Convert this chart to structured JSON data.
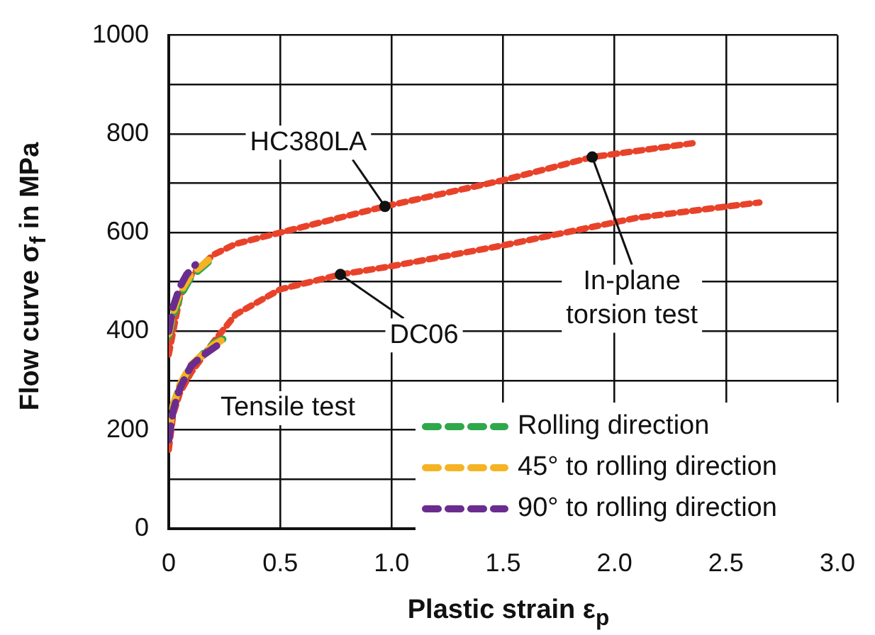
{
  "chart_data": {
    "type": "line",
    "xlabel": "Plastic strain ε$_{p}$",
    "ylabel": "Flow curve σ$_{f}$ in MPa",
    "xlim": [
      0,
      3.0
    ],
    "xticks": [
      0,
      0.5,
      {
        "value": 1,
        "label": "1.0"
      },
      1.5,
      {
        "value": 2,
        "label": "2.0"
      },
      2.5,
      {
        "value": 3,
        "label": "3.0"
      }
    ],
    "ylim": [
      0,
      1000
    ],
    "yticks": [
      0,
      {
        "value": 100,
        "label": null
      },
      200,
      {
        "value": 300,
        "label": null
      },
      400,
      {
        "value": 500,
        "label": null
      },
      600,
      {
        "value": 700,
        "label": null
      },
      800,
      {
        "value": 900,
        "label": null
      },
      1000
    ],
    "grid": true,
    "legend": "bottom right",
    "marker": "none",
    "series": [
      {
        "color": "#e8432a",
        "line_style": "dotted",
        "x": [
          0,
          0.02,
          0.05,
          0.1,
          0.2,
          0.3,
          0.5,
          0.97,
          1.5,
          1.9,
          2.35
        ],
        "values": [
          353,
          400,
          470,
          513,
          555,
          577,
          600,
          653,
          706,
          753,
          781
        ]
      },
      {
        "color": "#e8432a",
        "line_style": "dotted",
        "x": [
          0,
          0.02,
          0.05,
          0.1,
          0.2,
          0.3,
          0.5,
          0.77,
          1.0,
          1.5,
          2.1,
          2.65
        ],
        "values": [
          160,
          232,
          275,
          316,
          378,
          434,
          485,
          515,
          532,
          574,
          630,
          661
        ]
      },
      {
        "name": "Rolling direction",
        "color": "#2ea84a",
        "line_style": "dashed",
        "x": [
          0,
          0.02,
          0.05,
          0.1,
          0.2
        ],
        "values": [
          390,
          430,
          470,
          510,
          549
        ]
      },
      {
        "color": "#2ea84a",
        "line_style": "dashed",
        "x": [
          0,
          0.02,
          0.05,
          0.1,
          0.2,
          0.28
        ],
        "values": [
          200,
          250,
          290,
          330,
          375,
          392
        ]
      },
      {
        "name": "45° to rolling direction",
        "color": "#f5b324",
        "line_style": "dashed",
        "x": [
          0,
          0.02,
          0.05,
          0.1,
          0.18
        ],
        "values": [
          395,
          440,
          478,
          515,
          545
        ]
      },
      {
        "color": "#f5b324",
        "line_style": "dashed",
        "x": [
          0,
          0.02,
          0.05,
          0.1,
          0.2,
          0.27
        ],
        "values": [
          195,
          250,
          292,
          332,
          372,
          390
        ]
      },
      {
        "name": "90° to rolling direction",
        "color": "#6a2d8f",
        "line_style": "dashed",
        "x": [
          0,
          0.02,
          0.05,
          0.08,
          0.12
        ],
        "values": [
          400,
          450,
          490,
          515,
          535
        ]
      },
      {
        "color": "#6a2d8f",
        "line_style": "dashed",
        "x": [
          0,
          0.02,
          0.05,
          0.1,
          0.15,
          0.22
        ],
        "values": [
          180,
          240,
          285,
          330,
          350,
          372
        ]
      }
    ],
    "annotations": [
      {
        "text": "HC380LA",
        "x": 0.97,
        "y": 653
      },
      {
        "text": "DC06",
        "x": 0.77,
        "y": 515
      },
      {
        "text": "In-plane torsion test",
        "x": 1.9,
        "y": 753
      },
      "Tensile test"
    ]
  }
}
